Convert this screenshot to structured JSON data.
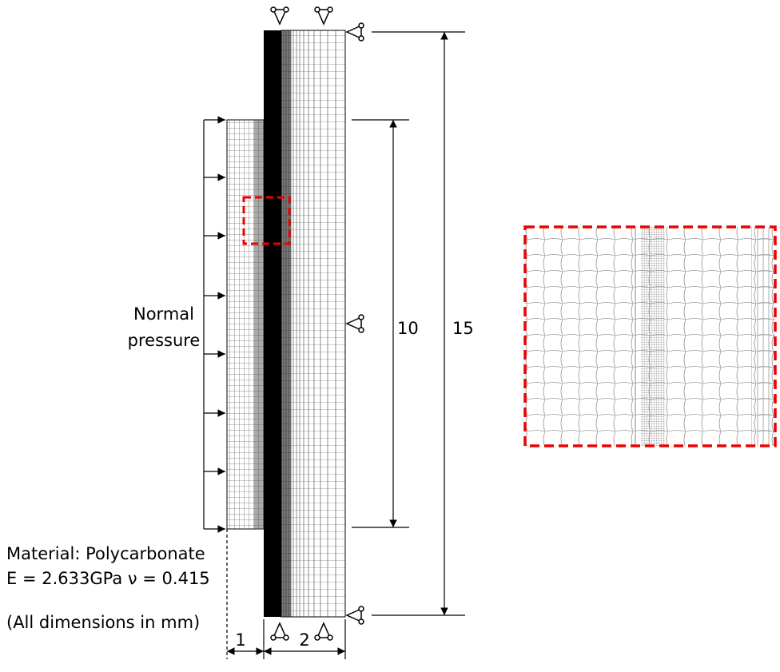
{
  "pressure_label": [
    "Normal",
    "pressure"
  ],
  "dimensions": {
    "height_total": "15",
    "height_loaded": "10",
    "thickness_left": "1",
    "thickness_right": "2"
  },
  "material": {
    "name": "Material: Polycarbonate",
    "properties": "E = 2.633GPa ν = 0.415"
  },
  "note": "(All dimensions in mm)"
}
